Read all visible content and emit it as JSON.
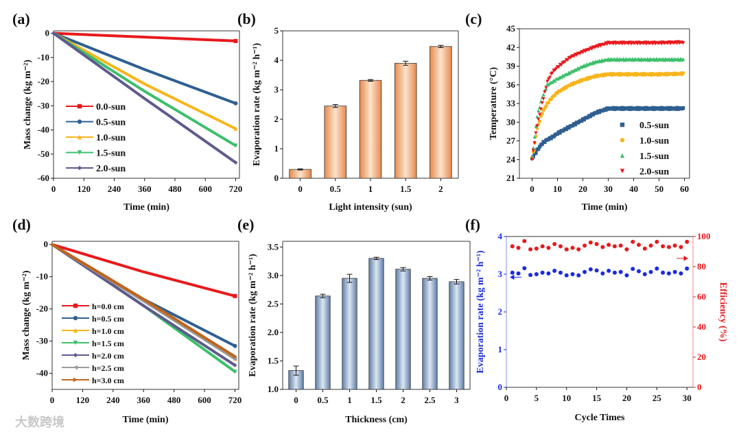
{
  "watermark": "大数跨境",
  "chart_data": [
    {
      "panel": "(a)",
      "type": "line",
      "xlabel": "Time (min)",
      "ylabel": "Mass change (kg m⁻²)",
      "xlim": [
        0,
        735
      ],
      "ylim": [
        -60,
        1
      ],
      "xticks": [
        0,
        120,
        240,
        360,
        480,
        600,
        720
      ],
      "yticks": [
        0,
        -10,
        -20,
        -30,
        -40,
        -50,
        -60
      ],
      "legend_position": "bottom-left",
      "series": [
        {
          "name": "0.0-sun",
          "color": "#e8191c",
          "marker": "square",
          "x": [
            0,
            360,
            720
          ],
          "y": [
            0,
            -1.6,
            -3.2
          ]
        },
        {
          "name": "0.5-sun",
          "color": "#2f5f91",
          "marker": "circle",
          "x": [
            0,
            360,
            720
          ],
          "y": [
            0,
            -15,
            -29
          ]
        },
        {
          "name": "1.0-sun",
          "color": "#f7b51c",
          "marker": "triangle-up",
          "x": [
            0,
            360,
            720
          ],
          "y": [
            0,
            -21,
            -39.5
          ]
        },
        {
          "name": "1.5-sun",
          "color": "#3cbf6a",
          "marker": "triangle-down",
          "x": [
            0,
            360,
            720
          ],
          "y": [
            0,
            -24,
            -46.5
          ]
        },
        {
          "name": "2.0-sun",
          "color": "#5e5a8e",
          "marker": "diamond",
          "x": [
            0,
            360,
            720
          ],
          "y": [
            0,
            -27,
            -53.5
          ]
        }
      ]
    },
    {
      "panel": "(b)",
      "type": "bar",
      "xlabel": "Light intensity (sun)",
      "ylabel": "Evaporation rate (kg m⁻² h⁻¹)",
      "ylim": [
        0,
        5
      ],
      "yticks": [
        0,
        1,
        2,
        3,
        4,
        5
      ],
      "categories": [
        "0",
        "0.5",
        "1",
        "1.5",
        "2"
      ],
      "values": [
        0.3,
        2.45,
        3.32,
        3.9,
        4.47
      ],
      "errors": [
        0.02,
        0.05,
        0.03,
        0.07,
        0.04
      ],
      "color": "#e58a4e"
    },
    {
      "panel": "(c)",
      "type": "scatter",
      "xlabel": "Time (min)",
      "ylabel": "Temperature (°C)",
      "xlim": [
        -5,
        62
      ],
      "ylim": [
        21,
        45
      ],
      "xticks": [
        0,
        10,
        20,
        30,
        40,
        50,
        60
      ],
      "yticks": [
        21,
        24,
        27,
        30,
        33,
        36,
        39,
        42,
        45
      ],
      "legend_position": "bottom-right",
      "series": [
        {
          "name": "0.5-sun",
          "color": "#2f5f91",
          "marker": "square",
          "x": [
            0,
            2,
            4,
            6,
            8,
            10,
            15,
            20,
            25,
            30,
            40,
            50,
            60
          ],
          "y": [
            24.2,
            25.5,
            26.6,
            27.2,
            27.6,
            28.2,
            29.3,
            30.4,
            31.5,
            32.2,
            32.2,
            32.2,
            32.2
          ]
        },
        {
          "name": "1.0-sun",
          "color": "#f7b51c",
          "marker": "circle",
          "x": [
            0,
            2,
            4,
            6,
            8,
            10,
            15,
            20,
            25,
            30,
            40,
            50,
            60
          ],
          "y": [
            24.2,
            29,
            31.5,
            33,
            34,
            34.8,
            36,
            36.8,
            37.4,
            37.7,
            37.7,
            37.7,
            37.8
          ]
        },
        {
          "name": "1.5-sun",
          "color": "#3cbf6a",
          "marker": "triangle-up",
          "x": [
            0,
            2,
            4,
            6,
            8,
            10,
            15,
            20,
            25,
            30,
            40,
            50,
            60
          ],
          "y": [
            24.3,
            31,
            34,
            36,
            36.5,
            37,
            38,
            39,
            39.7,
            40.1,
            40.1,
            40.1,
            40.1
          ]
        },
        {
          "name": "2.0-sun",
          "color": "#e8191c",
          "marker": "triangle-down",
          "x": [
            0,
            2,
            4,
            6,
            8,
            10,
            15,
            20,
            25,
            30,
            40,
            50,
            60
          ],
          "y": [
            24.0,
            29.5,
            33,
            36.5,
            38,
            38.8,
            40.4,
            41.3,
            42.1,
            42.7,
            42.7,
            42.7,
            42.8
          ]
        }
      ]
    },
    {
      "panel": "(d)",
      "type": "line",
      "xlabel": "Time (min)",
      "ylabel": "Mass change (kg m⁻²)",
      "xlim": [
        0,
        735
      ],
      "ylim": [
        -45,
        1
      ],
      "xticks": [
        0,
        120,
        240,
        360,
        480,
        600,
        720
      ],
      "yticks": [
        0,
        -10,
        -20,
        -30,
        -40
      ],
      "legend_position": "bottom-left",
      "series": [
        {
          "name": "h=0.0 cm",
          "color": "#e8191c",
          "marker": "square",
          "x": [
            0,
            360,
            720
          ],
          "y": [
            0,
            -8.5,
            -16
          ]
        },
        {
          "name": "h=0.5 cm",
          "color": "#2f5f91",
          "marker": "circle",
          "x": [
            0,
            360,
            720
          ],
          "y": [
            0,
            -17,
            -31.5
          ]
        },
        {
          "name": "h=1.0 cm",
          "color": "#f7b51c",
          "marker": "triangle-up",
          "x": [
            0,
            360,
            720
          ],
          "y": [
            0,
            -17.5,
            -35.5
          ]
        },
        {
          "name": "h=1.5 cm",
          "color": "#3cbf6a",
          "marker": "triangle-down",
          "x": [
            0,
            360,
            720
          ],
          "y": [
            0,
            -19,
            -39.5
          ]
        },
        {
          "name": "h=2.0 cm",
          "color": "#5e5a8e",
          "marker": "diamond",
          "x": [
            0,
            360,
            720
          ],
          "y": [
            0,
            -19,
            -37.5
          ]
        },
        {
          "name": "h=2.5 cm",
          "color": "#9a9a9a",
          "marker": "triangle-left",
          "x": [
            0,
            360,
            720
          ],
          "y": [
            0,
            -17.5,
            -35.5
          ]
        },
        {
          "name": "h=3.0 cm",
          "color": "#c0651c",
          "marker": "triangle-right",
          "x": [
            0,
            360,
            720
          ],
          "y": [
            0,
            -17,
            -34.8
          ]
        }
      ]
    },
    {
      "panel": "(e)",
      "type": "bar",
      "xlabel": "Thickness (cm)",
      "ylabel": "Evaporation rate (kg m⁻² h⁻¹)",
      "ylim": [
        1.0,
        3.6
      ],
      "yticks": [
        "1.0",
        "1.5",
        "2.0",
        "2.5",
        "3.0",
        "3.5"
      ],
      "categories": [
        "0",
        "0.5",
        "1",
        "1.5",
        "2",
        "2.5",
        "3"
      ],
      "values": [
        1.33,
        2.64,
        2.95,
        3.3,
        3.11,
        2.95,
        2.89
      ],
      "errors": [
        0.08,
        0.03,
        0.07,
        0.02,
        0.03,
        0.03,
        0.04
      ],
      "color": "#5f7fa8"
    },
    {
      "panel": "(f)",
      "type": "scatter",
      "xlabel": "Cycle Times",
      "ylabel": "Evaporation rate (kg m⁻² h⁻¹)",
      "y2label": "Efficiency (%)",
      "xlim": [
        0,
        31
      ],
      "ylim": [
        0,
        4
      ],
      "y2lim": [
        0,
        100
      ],
      "xticks": [
        0,
        5,
        10,
        15,
        20,
        25,
        30
      ],
      "yticks": [
        0,
        1,
        2,
        3,
        4
      ],
      "y2ticks": [
        0,
        20,
        40,
        60,
        80,
        100
      ],
      "series": [
        {
          "name": "Evaporation rate",
          "axis": "left",
          "color": "#1a2be0",
          "x": [
            1,
            2,
            3,
            4,
            5,
            6,
            7,
            8,
            9,
            10,
            11,
            12,
            13,
            14,
            15,
            16,
            17,
            18,
            19,
            20,
            21,
            22,
            23,
            24,
            25,
            26,
            27,
            28,
            29,
            30
          ],
          "y": [
            3.04,
            3.02,
            3.16,
            2.98,
            3.0,
            3.04,
            3.02,
            3.09,
            3.04,
            2.97,
            3.0,
            2.97,
            3.06,
            3.13,
            3.1,
            3.02,
            3.09,
            3.04,
            3.06,
            2.97,
            3.14,
            3.08,
            3.0,
            3.06,
            3.15,
            3.04,
            3.02,
            3.06,
            3.02,
            3.15
          ]
        },
        {
          "name": "Efficiency",
          "axis": "right",
          "color": "#e8191c",
          "x": [
            1,
            2,
            3,
            4,
            5,
            6,
            7,
            8,
            9,
            10,
            11,
            12,
            13,
            14,
            15,
            16,
            17,
            18,
            19,
            20,
            21,
            22,
            23,
            24,
            25,
            26,
            27,
            28,
            29,
            30
          ],
          "y": [
            93.5,
            92.5,
            97,
            91.5,
            92,
            93.5,
            92.5,
            95,
            93.5,
            91.5,
            92.5,
            91.5,
            94,
            96,
            95,
            93,
            94.5,
            93.5,
            94,
            91.5,
            96.5,
            94.5,
            92,
            94,
            96.5,
            93.5,
            93,
            94,
            93,
            96.5
          ]
        }
      ]
    }
  ]
}
